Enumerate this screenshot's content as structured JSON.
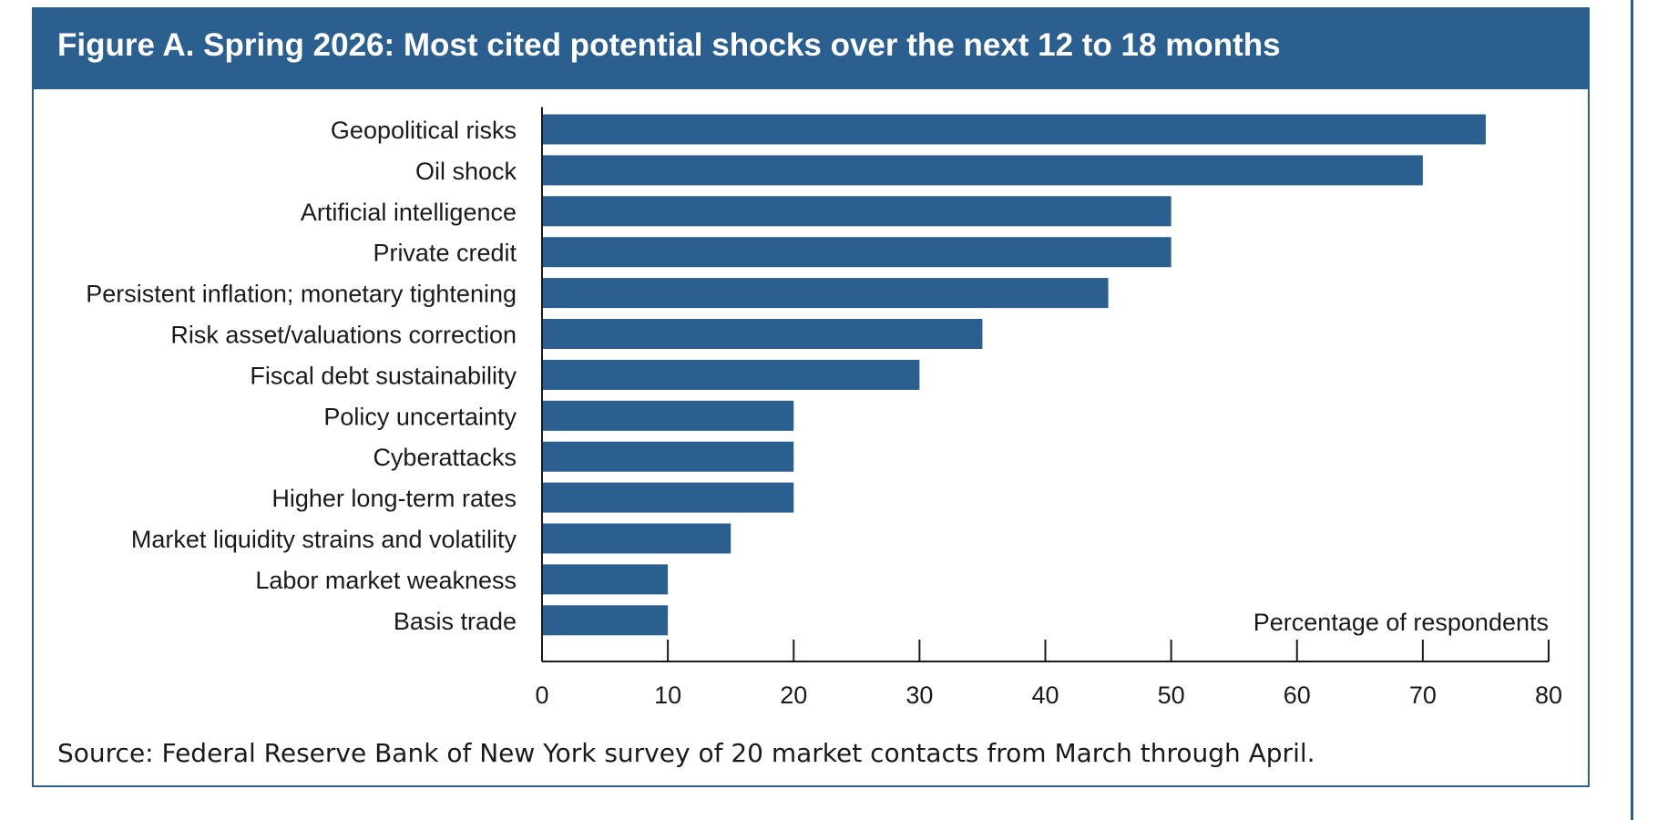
{
  "figure": {
    "title": "Figure A. Spring 2026: Most cited potential shocks over the next 12 to 18 months",
    "source": "Source: Federal Reserve Bank of New York survey of 20 market contacts from March through April."
  },
  "colors": {
    "accent": "#2a5f8f",
    "bar": "#2a5f8f",
    "text": "#1a1a1a"
  },
  "chart_data": {
    "type": "bar",
    "orientation": "horizontal",
    "title": "Figure A. Spring 2026: Most cited potential shocks over the next 12 to 18 months",
    "xlabel": "Percentage of respondents",
    "ylabel": "",
    "categories": [
      "Geopolitical risks",
      "Oil shock",
      "Artificial intelligence",
      "Private credit",
      "Persistent inflation; monetary tightening",
      "Risk asset/valuations correction",
      "Fiscal debt sustainability",
      "Policy uncertainty",
      "Cyberattacks",
      "Higher long-term rates",
      "Market liquidity strains and volatility",
      "Labor market weakness",
      "Basis trade"
    ],
    "values": [
      75,
      70,
      50,
      50,
      45,
      35,
      30,
      20,
      20,
      20,
      15,
      10,
      10
    ],
    "xlim": [
      0,
      80
    ],
    "xticks": [
      0,
      10,
      20,
      30,
      40,
      50,
      60,
      70,
      80
    ],
    "grid": false,
    "legend": "none"
  }
}
